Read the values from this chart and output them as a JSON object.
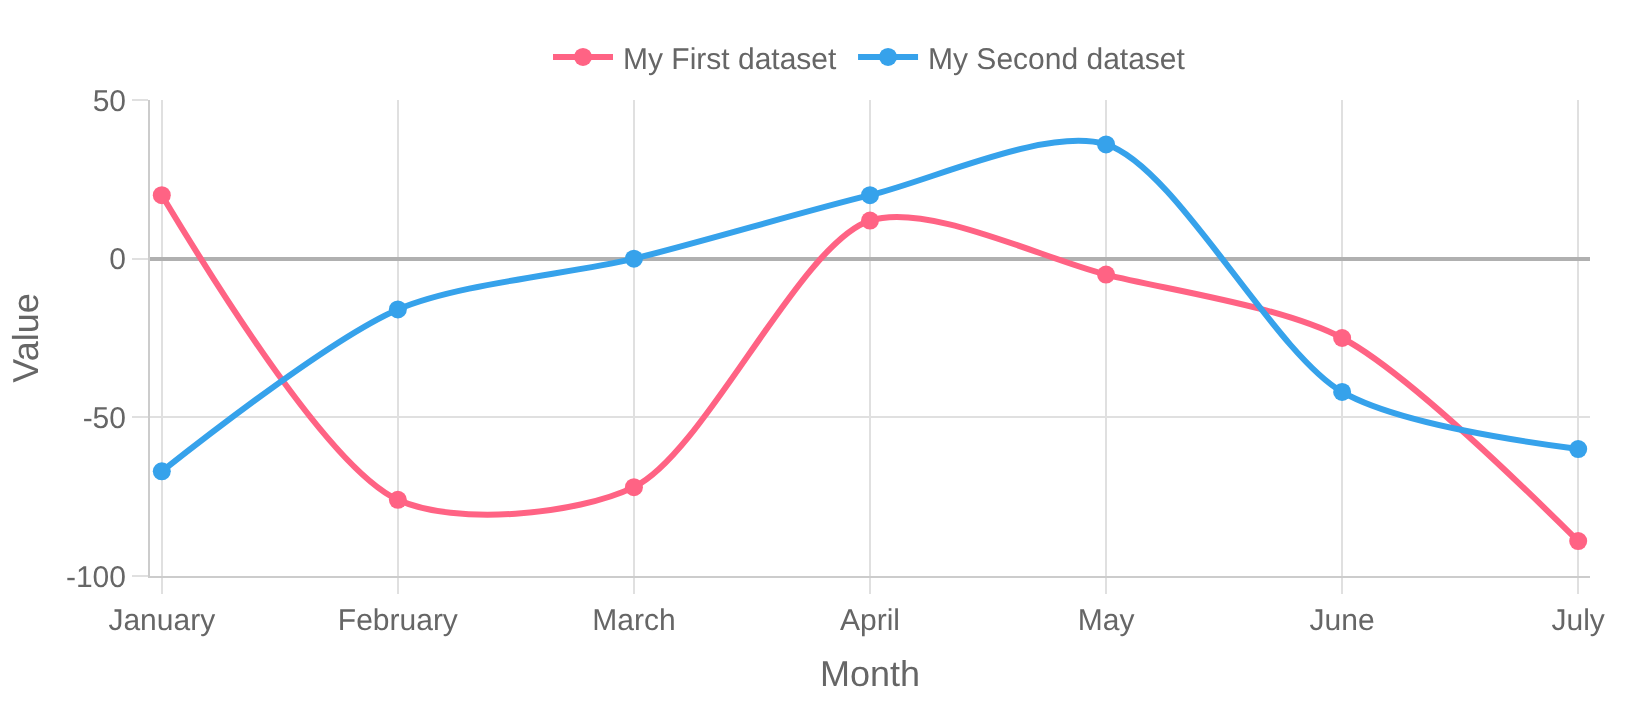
{
  "chart_data": {
    "type": "line",
    "xlabel": "Month",
    "ylabel": "Value",
    "categories": [
      "January",
      "February",
      "March",
      "April",
      "May",
      "June",
      "July"
    ],
    "series": [
      {
        "name": "My First dataset",
        "color": "#ff6384",
        "values": [
          20,
          -76,
          -72,
          12,
          -5,
          -25,
          -89
        ]
      },
      {
        "name": "My Second dataset",
        "color": "#36a2eb",
        "values": [
          -67,
          -16,
          0,
          20,
          36,
          -42,
          -60
        ]
      }
    ],
    "ylim": [
      -100,
      50
    ],
    "yticks": [
      -100,
      -50,
      0,
      50
    ],
    "grid": true,
    "legend": "top",
    "marker": "circle",
    "line_style": "solid"
  }
}
